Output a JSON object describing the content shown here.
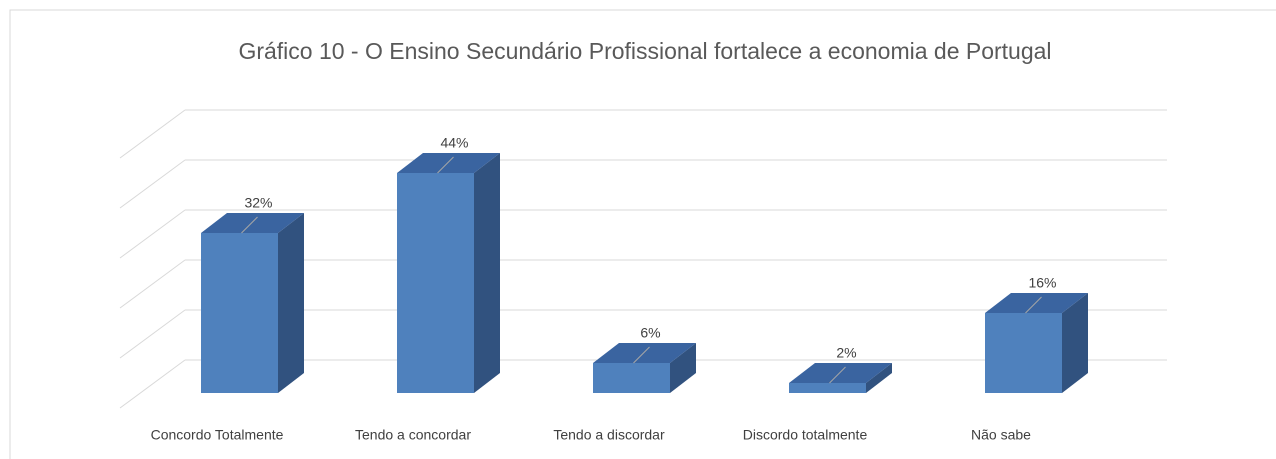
{
  "chart_data": {
    "type": "bar3d",
    "title": "Gráfico 10 - O Ensino Secundário Profissional fortalece a economia de Portugal",
    "categories": [
      "Concordo Totalmente",
      "Tendo a concordar",
      "Tendo a discordar",
      "Discordo totalmente",
      "Não sabe"
    ],
    "values": [
      32,
      44,
      6,
      2,
      16
    ],
    "value_labels": [
      "32%",
      "44%",
      "6%",
      "2%",
      "16%"
    ],
    "color": "#4f81bd",
    "ylim": [
      0,
      50
    ],
    "yticks": [
      0,
      10,
      20,
      30,
      40,
      50
    ],
    "grid": true
  }
}
